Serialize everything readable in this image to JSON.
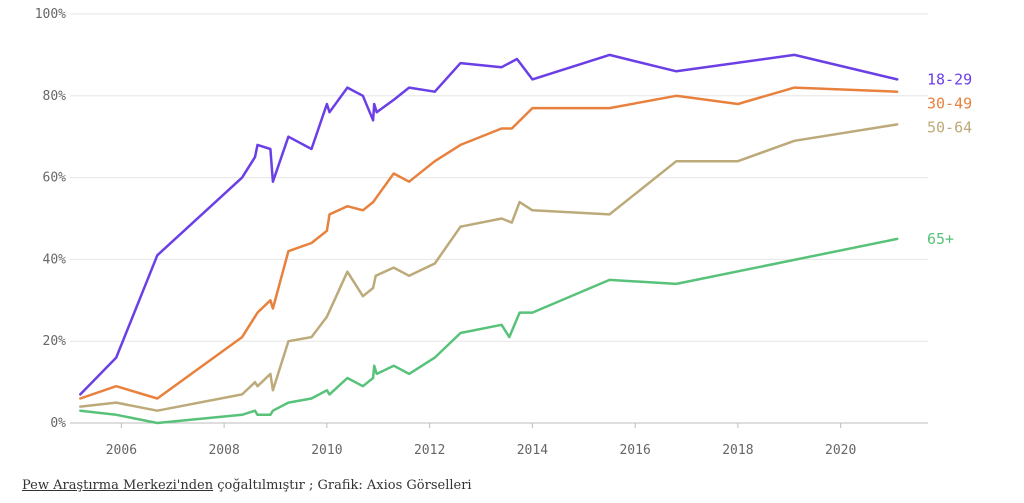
{
  "chart_data": {
    "type": "line",
    "title": "",
    "xlabel": "",
    "ylabel": "",
    "xlim": [
      2005.0,
      2021.7
    ],
    "ylim": [
      0,
      100
    ],
    "x_ticks": [
      2006,
      2008,
      2010,
      2012,
      2014,
      2016,
      2018,
      2020
    ],
    "x_tick_labels": [
      "2006",
      "2008",
      "2010",
      "2012",
      "2014",
      "2016",
      "2018",
      "2020"
    ],
    "y_ticks": [
      0,
      20,
      40,
      60,
      80,
      100
    ],
    "y_tick_labels": [
      "0%",
      "20%",
      "40%",
      "60%",
      "80%",
      "100%"
    ],
    "grid": "horizontal",
    "legend": "inline-right",
    "series": [
      {
        "name": "18-29",
        "color": "#6b3fe6",
        "points": [
          [
            2005.2,
            7
          ],
          [
            2005.9,
            16
          ],
          [
            2006.7,
            41
          ],
          [
            2008.35,
            60
          ],
          [
            2008.6,
            65
          ],
          [
            2008.65,
            68
          ],
          [
            2008.9,
            67
          ],
          [
            2008.95,
            59
          ],
          [
            2009.25,
            70
          ],
          [
            2009.7,
            67
          ],
          [
            2010.0,
            78
          ],
          [
            2010.05,
            76
          ],
          [
            2010.4,
            82
          ],
          [
            2010.7,
            80
          ],
          [
            2010.9,
            74
          ],
          [
            2010.92,
            78
          ],
          [
            2010.97,
            76
          ],
          [
            2011.3,
            79
          ],
          [
            2011.6,
            82
          ],
          [
            2012.1,
            81
          ],
          [
            2012.6,
            88
          ],
          [
            2013.4,
            87
          ],
          [
            2013.7,
            89
          ],
          [
            2014.0,
            84
          ],
          [
            2015.5,
            90
          ],
          [
            2016.8,
            86
          ],
          [
            2019.1,
            90
          ],
          [
            2021.1,
            84
          ]
        ]
      },
      {
        "name": "30-49",
        "color": "#e8813d",
        "points": [
          [
            2005.2,
            6
          ],
          [
            2005.9,
            9
          ],
          [
            2006.7,
            6
          ],
          [
            2008.35,
            21
          ],
          [
            2008.6,
            26
          ],
          [
            2008.65,
            27
          ],
          [
            2008.9,
            30
          ],
          [
            2008.95,
            28
          ],
          [
            2009.25,
            42
          ],
          [
            2009.7,
            44
          ],
          [
            2010.0,
            47
          ],
          [
            2010.05,
            51
          ],
          [
            2010.4,
            53
          ],
          [
            2010.7,
            52
          ],
          [
            2010.9,
            54
          ],
          [
            2011.3,
            61
          ],
          [
            2011.6,
            59
          ],
          [
            2012.1,
            64
          ],
          [
            2012.6,
            68
          ],
          [
            2013.4,
            72
          ],
          [
            2013.6,
            72
          ],
          [
            2014.0,
            77
          ],
          [
            2015.5,
            77
          ],
          [
            2016.8,
            80
          ],
          [
            2018.0,
            78
          ],
          [
            2019.1,
            82
          ],
          [
            2021.1,
            81
          ]
        ]
      },
      {
        "name": "50-64",
        "color": "#bdaa7a",
        "points": [
          [
            2005.2,
            4
          ],
          [
            2005.9,
            5
          ],
          [
            2006.7,
            3
          ],
          [
            2008.35,
            7
          ],
          [
            2008.6,
            10
          ],
          [
            2008.65,
            9
          ],
          [
            2008.9,
            12
          ],
          [
            2008.95,
            8
          ],
          [
            2009.25,
            20
          ],
          [
            2009.7,
            21
          ],
          [
            2010.0,
            26
          ],
          [
            2010.4,
            37
          ],
          [
            2010.7,
            31
          ],
          [
            2010.9,
            33
          ],
          [
            2010.95,
            36
          ],
          [
            2011.3,
            38
          ],
          [
            2011.6,
            36
          ],
          [
            2012.1,
            39
          ],
          [
            2012.6,
            48
          ],
          [
            2013.4,
            50
          ],
          [
            2013.6,
            49
          ],
          [
            2013.75,
            54
          ],
          [
            2014.0,
            52
          ],
          [
            2015.5,
            51
          ],
          [
            2016.8,
            64
          ],
          [
            2018.0,
            64
          ],
          [
            2019.1,
            69
          ],
          [
            2021.1,
            73
          ]
        ]
      },
      {
        "name": "65+",
        "color": "#58c27a",
        "points": [
          [
            2005.2,
            3
          ],
          [
            2005.9,
            2
          ],
          [
            2006.7,
            0
          ],
          [
            2008.35,
            2
          ],
          [
            2008.6,
            3
          ],
          [
            2008.65,
            2
          ],
          [
            2008.9,
            2
          ],
          [
            2008.95,
            3
          ],
          [
            2009.25,
            5
          ],
          [
            2009.7,
            6
          ],
          [
            2010.0,
            8
          ],
          [
            2010.05,
            7
          ],
          [
            2010.4,
            11
          ],
          [
            2010.7,
            9
          ],
          [
            2010.9,
            11
          ],
          [
            2010.92,
            14
          ],
          [
            2010.97,
            12
          ],
          [
            2011.3,
            14
          ],
          [
            2011.6,
            12
          ],
          [
            2012.1,
            16
          ],
          [
            2012.6,
            22
          ],
          [
            2013.4,
            24
          ],
          [
            2013.55,
            21
          ],
          [
            2013.75,
            27
          ],
          [
            2014.0,
            27
          ],
          [
            2015.5,
            35
          ],
          [
            2016.8,
            34
          ],
          [
            2021.1,
            45
          ]
        ]
      }
    ]
  },
  "source": {
    "link_text": "Pew Araştırma Merkezi'nden",
    "rest_text": " çoğaltılmıştır ; Grafik: Axios Görselleri"
  }
}
